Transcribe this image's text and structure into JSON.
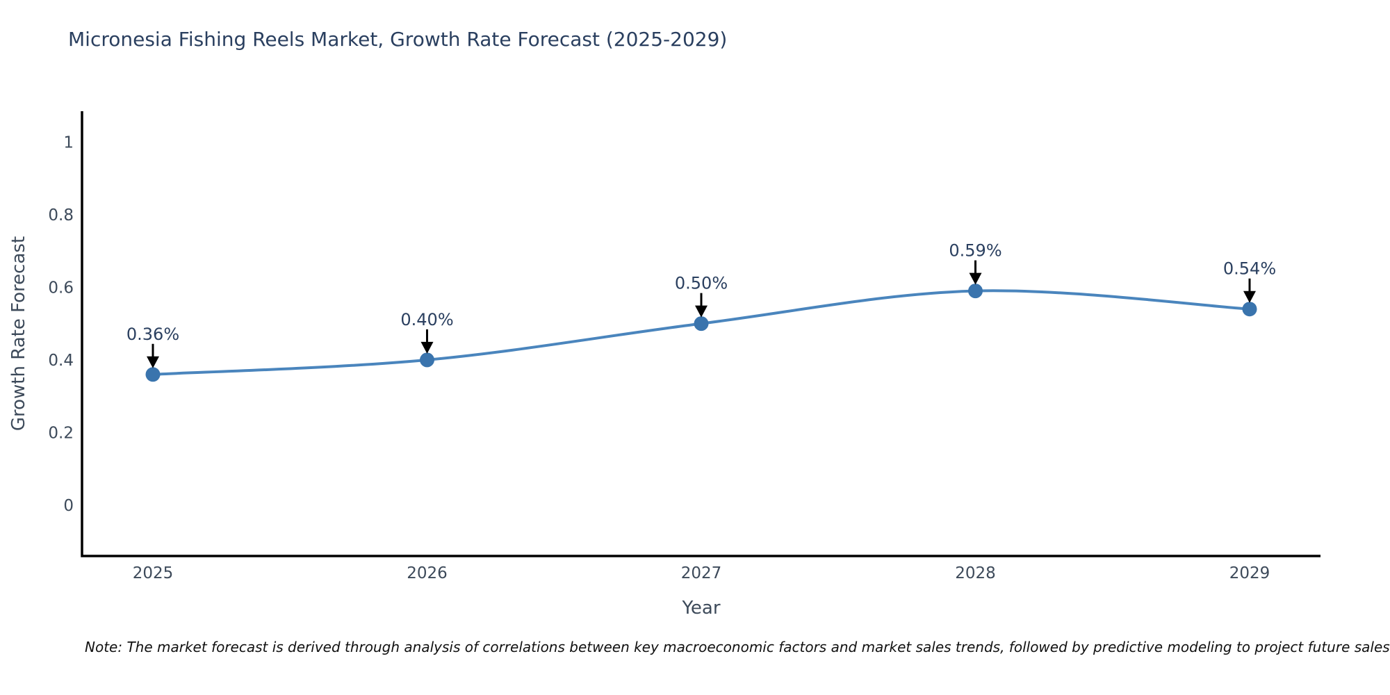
{
  "chart_data": {
    "type": "line",
    "title": "Micronesia Fishing Reels Market, Growth Rate Forecast (2025-2029)",
    "xlabel": "Year",
    "ylabel": "Growth Rate Forecast",
    "categories": [
      "2025",
      "2026",
      "2027",
      "2028",
      "2029"
    ],
    "series": [
      {
        "name": "Growth Rate Forecast",
        "values": [
          0.36,
          0.4,
          0.5,
          0.59,
          0.54
        ],
        "point_labels": [
          "0.36%",
          "0.40%",
          "0.50%",
          "0.59%",
          "0.54%"
        ]
      }
    ],
    "yticks": [
      1,
      0.8,
      0.6,
      0.4,
      0.2,
      0
    ],
    "ylim": [
      -0.14,
      1.085
    ],
    "grid": false,
    "legend": "none",
    "line_shape": "spline",
    "colors": {
      "line": "#4a85bd",
      "marker": "#3a74ad",
      "arrow": "#000000",
      "axis": "#000000",
      "title_text": "#2a3f5f",
      "tick_text": "#3d4a5a",
      "annotation_text": "#2a3f5f"
    }
  },
  "note": "Note: The market forecast is derived through analysis of correlations between key macroeconomic factors and market sales trends, followed by predictive modeling to project future sales"
}
